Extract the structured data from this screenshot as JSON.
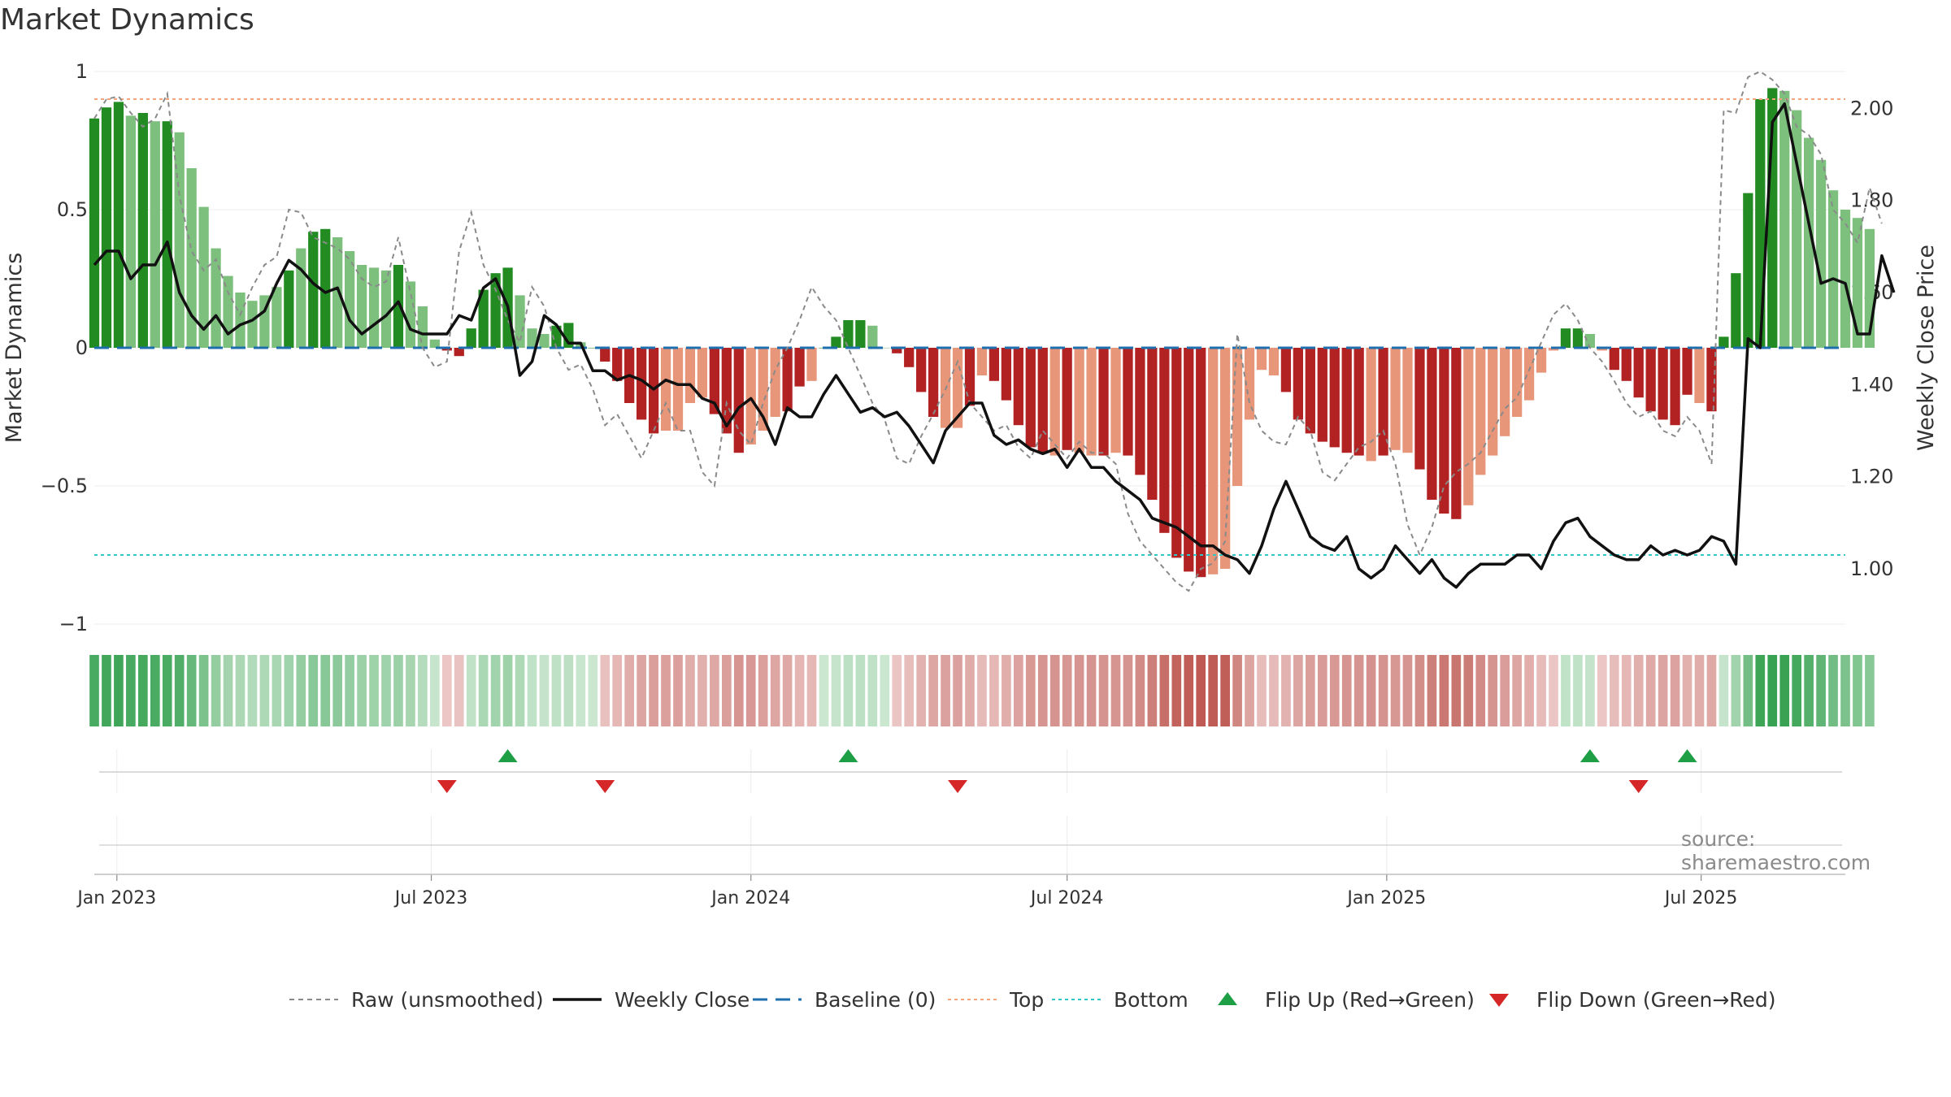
{
  "title": "Market Dynamics",
  "source": "source: sharemaestro.com",
  "colors": {
    "strong_green": "#228b22",
    "light_green": "#7dbf7d",
    "strong_red": "#b22222",
    "light_red": "#e8967a",
    "raw_line": "#8a8a8a",
    "weekly_close": "#111111",
    "baseline": "#1f6fae",
    "top": "#f4a57a",
    "bottom": "#32c5c5",
    "flip_up": "#1e9e45",
    "flip_down": "#d62728"
  },
  "legend": [
    {
      "label": "Raw (unsmoothed)",
      "swatch": "raw"
    },
    {
      "label": "Weekly Close",
      "swatch": "close"
    },
    {
      "label": "Baseline (0)",
      "swatch": "baseline"
    },
    {
      "label": "Top",
      "swatch": "top"
    },
    {
      "label": "Bottom",
      "swatch": "bottom"
    },
    {
      "label": "Flip Up (Red→Green)",
      "swatch": "up"
    },
    {
      "label": "Flip Down (Green→Red)",
      "swatch": "down"
    }
  ],
  "chart_data": {
    "type": "bar",
    "title": "Market Dynamics",
    "ylabel": "Market Dynamics",
    "y2label": "Weekly Close Price",
    "ylim": [
      -1,
      1
    ],
    "y2lim": [
      0.88,
      2.08
    ],
    "yticks": [
      1,
      0.5,
      0,
      -0.5,
      -1
    ],
    "ytick_labels": [
      "1",
      "0.5",
      "0",
      "−0.5",
      "−1"
    ],
    "y2ticks": [
      2.0,
      1.8,
      1.6,
      1.4,
      1.2,
      1.0
    ],
    "y2tick_labels": [
      "2.00",
      "1.80",
      "1.60",
      "1.40",
      "1.20",
      "1.00"
    ],
    "x_start": "2022-12-19",
    "x_end": "2025-09-22",
    "xticks": [
      {
        "date": "2023-01-01",
        "label": "Jan 2023"
      },
      {
        "date": "2023-07-01",
        "label": "Jul 2023"
      },
      {
        "date": "2024-01-01",
        "label": "Jan 2024"
      },
      {
        "date": "2024-07-01",
        "label": "Jul 2024"
      },
      {
        "date": "2025-01-01",
        "label": "Jan 2025"
      },
      {
        "date": "2025-07-01",
        "label": "Jul 2025"
      }
    ],
    "reference_lines": {
      "top": 0.9,
      "bottom": -0.75,
      "baseline": 0
    },
    "first_week": "2022-12-19",
    "smoothed": [
      0.83,
      0.87,
      0.89,
      0.84,
      0.85,
      0.82,
      0.82,
      0.78,
      0.65,
      0.51,
      0.36,
      0.26,
      0.2,
      0.17,
      0.19,
      0.22,
      0.28,
      0.36,
      0.42,
      0.43,
      0.4,
      0.35,
      0.3,
      0.29,
      0.28,
      0.3,
      0.24,
      0.15,
      0.03,
      -0.01,
      -0.03,
      0.07,
      0.21,
      0.27,
      0.29,
      0.19,
      0.07,
      0.05,
      0.08,
      0.09,
      0.02,
      0,
      -0.05,
      -0.12,
      -0.2,
      -0.26,
      -0.31,
      -0.3,
      -0.3,
      -0.2,
      -0.18,
      -0.24,
      -0.31,
      -0.38,
      -0.35,
      -0.3,
      -0.25,
      -0.23,
      -0.14,
      -0.12,
      0,
      0.04,
      0.1,
      0.1,
      0.08,
      0,
      -0.02,
      -0.07,
      -0.16,
      -0.25,
      -0.29,
      -0.29,
      -0.21,
      -0.1,
      -0.12,
      -0.19,
      -0.28,
      -0.36,
      -0.38,
      -0.39,
      -0.37,
      -0.38,
      -0.39,
      -0.39,
      -0.38,
      -0.39,
      -0.46,
      -0.55,
      -0.67,
      -0.76,
      -0.81,
      -0.83,
      -0.82,
      -0.8,
      -0.5,
      -0.26,
      -0.08,
      -0.1,
      -0.16,
      -0.26,
      -0.31,
      -0.34,
      -0.36,
      -0.38,
      -0.39,
      -0.41,
      -0.39,
      -0.37,
      -0.38,
      -0.44,
      -0.55,
      -0.6,
      -0.62,
      -0.57,
      -0.46,
      -0.39,
      -0.32,
      -0.25,
      -0.19,
      -0.09,
      -0.01,
      0.07,
      0.07,
      0.05,
      -0.01,
      -0.08,
      -0.12,
      -0.18,
      -0.23,
      -0.26,
      -0.28,
      -0.17,
      -0.2,
      -0.23,
      0.04,
      0.27,
      0.56,
      0.9,
      0.94,
      0.93,
      0.86,
      0.76,
      0.68,
      0.57,
      0.5,
      0.47,
      0.43
    ],
    "shade": [
      1,
      1,
      1,
      0,
      1,
      0,
      1,
      0,
      0,
      0,
      0,
      0,
      0,
      0,
      0,
      0,
      1,
      0,
      1,
      1,
      0,
      0,
      0,
      0,
      0,
      1,
      0,
      0,
      0,
      1,
      1,
      1,
      1,
      1,
      1,
      0,
      0,
      0,
      1,
      1,
      0,
      1,
      1,
      1,
      1,
      1,
      1,
      0,
      0,
      0,
      0,
      1,
      1,
      1,
      0,
      0,
      0,
      1,
      1,
      0,
      1,
      1,
      1,
      1,
      0,
      0,
      1,
      1,
      1,
      1,
      0,
      0,
      1,
      0,
      1,
      1,
      1,
      1,
      1,
      0,
      1,
      0,
      0,
      1,
      0,
      1,
      1,
      1,
      1,
      1,
      1,
      1,
      0,
      0,
      0,
      0,
      0,
      0,
      1,
      1,
      1,
      1,
      1,
      1,
      1,
      0,
      1,
      0,
      0,
      1,
      1,
      1,
      1,
      0,
      0,
      0,
      0,
      0,
      0,
      0,
      0,
      1,
      1,
      0,
      0,
      1,
      1,
      1,
      1,
      1,
      1,
      1,
      0,
      1,
      1,
      1,
      1,
      1,
      1,
      0,
      0,
      0,
      0,
      0,
      0,
      0
    ],
    "raw": [
      0.83,
      0.9,
      0.91,
      0.85,
      0.8,
      0.83,
      0.92,
      0.55,
      0.35,
      0.28,
      0.32,
      0.2,
      0.12,
      0.22,
      0.3,
      0.33,
      0.5,
      0.49,
      0.4,
      0.38,
      0.36,
      0.32,
      0.25,
      0.22,
      0.24,
      0.4,
      0.2,
      0.0,
      -0.07,
      -0.05,
      0.35,
      0.49,
      0.3,
      0.21,
      0.1,
      0.02,
      0.22,
      0.15,
      0.0,
      -0.08,
      -0.06,
      -0.15,
      -0.28,
      -0.24,
      -0.32,
      -0.4,
      -0.3,
      -0.2,
      -0.3,
      -0.3,
      -0.45,
      -0.5,
      -0.2,
      -0.3,
      -0.35,
      -0.2,
      -0.08,
      0.0,
      0.1,
      0.22,
      0.15,
      0.1,
      0.0,
      -0.1,
      -0.2,
      -0.26,
      -0.4,
      -0.42,
      -0.32,
      -0.24,
      -0.15,
      -0.05,
      -0.2,
      -0.25,
      -0.3,
      -0.28,
      -0.36,
      -0.4,
      -0.3,
      -0.35,
      -0.4,
      -0.34,
      -0.38,
      -0.38,
      -0.42,
      -0.6,
      -0.7,
      -0.75,
      -0.8,
      -0.85,
      -0.88,
      -0.8,
      -0.78,
      -0.7,
      0.05,
      -0.2,
      -0.3,
      -0.34,
      -0.35,
      -0.25,
      -0.3,
      -0.45,
      -0.48,
      -0.42,
      -0.36,
      -0.34,
      -0.3,
      -0.42,
      -0.64,
      -0.75,
      -0.65,
      -0.5,
      -0.45,
      -0.42,
      -0.38,
      -0.3,
      -0.22,
      -0.18,
      -0.08,
      0.02,
      0.12,
      0.16,
      0.1,
      0.0,
      -0.05,
      -0.12,
      -0.2,
      -0.25,
      -0.23,
      -0.3,
      -0.32,
      -0.25,
      -0.3,
      -0.42,
      0.86,
      0.85,
      0.98,
      1.0,
      0.97,
      0.92,
      0.8,
      0.77,
      0.7,
      0.5,
      0.45,
      0.38,
      0.58,
      0.45
    ],
    "close": [
      1.66,
      1.69,
      1.69,
      1.63,
      1.66,
      1.66,
      1.71,
      1.6,
      1.55,
      1.52,
      1.55,
      1.51,
      1.53,
      1.54,
      1.56,
      1.62,
      1.67,
      1.65,
      1.62,
      1.6,
      1.61,
      1.54,
      1.51,
      1.53,
      1.55,
      1.58,
      1.52,
      1.51,
      1.51,
      1.51,
      1.55,
      1.54,
      1.61,
      1.63,
      1.57,
      1.42,
      1.45,
      1.55,
      1.53,
      1.49,
      1.49,
      1.43,
      1.43,
      1.41,
      1.42,
      1.41,
      1.39,
      1.41,
      1.4,
      1.4,
      1.37,
      1.36,
      1.31,
      1.35,
      1.37,
      1.33,
      1.27,
      1.35,
      1.33,
      1.33,
      1.38,
      1.42,
      1.38,
      1.34,
      1.35,
      1.33,
      1.34,
      1.31,
      1.27,
      1.23,
      1.3,
      1.33,
      1.36,
      1.36,
      1.29,
      1.27,
      1.28,
      1.26,
      1.25,
      1.26,
      1.22,
      1.26,
      1.22,
      1.22,
      1.19,
      1.17,
      1.15,
      1.11,
      1.1,
      1.09,
      1.07,
      1.05,
      1.05,
      1.03,
      1.02,
      0.99,
      1.05,
      1.13,
      1.19,
      1.13,
      1.07,
      1.05,
      1.04,
      1.07,
      1.0,
      0.98,
      1.0,
      1.05,
      1.02,
      0.99,
      1.02,
      0.98,
      0.96,
      0.99,
      1.01,
      1.01,
      1.01,
      1.03,
      1.03,
      1.0,
      1.06,
      1.1,
      1.11,
      1.07,
      1.05,
      1.03,
      1.02,
      1.02,
      1.05,
      1.03,
      1.04,
      1.03,
      1.04,
      1.07,
      1.06,
      1.01,
      1.5,
      1.48,
      1.97,
      2.01,
      1.88,
      1.75,
      1.62,
      1.63,
      1.62,
      1.51,
      1.51,
      1.68,
      1.6
    ],
    "flips": [
      {
        "date": "2023-07-10",
        "type": "down"
      },
      {
        "date": "2023-08-14",
        "type": "up"
      },
      {
        "date": "2023-10-09",
        "type": "down"
      },
      {
        "date": "2024-02-26",
        "type": "up"
      },
      {
        "date": "2024-04-29",
        "type": "down"
      },
      {
        "date": "2025-04-28",
        "type": "up"
      },
      {
        "date": "2025-05-26",
        "type": "down"
      },
      {
        "date": "2025-06-23",
        "type": "up"
      }
    ]
  }
}
